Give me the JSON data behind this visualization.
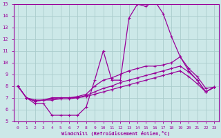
{
  "xlabel": "Windchill (Refroidissement éolien,°C)",
  "bg_color": "#cce8e8",
  "line_color": "#990099",
  "grid_color": "#aacccc",
  "xlim_min": -0.5,
  "xlim_max": 23.5,
  "ylim_min": 5,
  "ylim_max": 15,
  "xticks": [
    0,
    1,
    2,
    3,
    4,
    5,
    6,
    7,
    8,
    9,
    10,
    11,
    12,
    13,
    14,
    15,
    16,
    17,
    18,
    19,
    20,
    21,
    22,
    23
  ],
  "yticks": [
    5,
    6,
    7,
    8,
    9,
    10,
    11,
    12,
    13,
    14,
    15
  ],
  "series": [
    [
      8.0,
      7.0,
      6.5,
      6.5,
      5.5,
      5.5,
      5.5,
      5.5,
      6.2,
      8.5,
      11.0,
      8.5,
      8.5,
      13.8,
      15.0,
      14.8,
      15.3,
      14.2,
      12.2,
      10.5,
      9.3,
      8.5,
      7.5,
      7.9
    ],
    [
      8.0,
      7.0,
      6.8,
      6.8,
      7.0,
      7.0,
      7.0,
      7.1,
      7.3,
      8.0,
      8.5,
      8.7,
      9.0,
      9.3,
      9.5,
      9.7,
      9.7,
      9.8,
      10.0,
      10.5,
      9.5,
      8.8,
      7.8,
      7.9
    ],
    [
      8.0,
      7.0,
      6.7,
      6.8,
      6.9,
      7.0,
      7.0,
      7.0,
      7.2,
      7.5,
      7.8,
      8.0,
      8.3,
      8.5,
      8.7,
      8.9,
      9.1,
      9.3,
      9.5,
      9.7,
      9.2,
      8.5,
      7.5,
      7.9
    ],
    [
      8.0,
      7.0,
      6.7,
      6.8,
      6.8,
      6.9,
      6.9,
      7.0,
      7.1,
      7.3,
      7.5,
      7.7,
      7.9,
      8.1,
      8.3,
      8.5,
      8.7,
      8.9,
      9.1,
      9.3,
      8.8,
      8.2,
      7.5,
      7.9
    ]
  ]
}
